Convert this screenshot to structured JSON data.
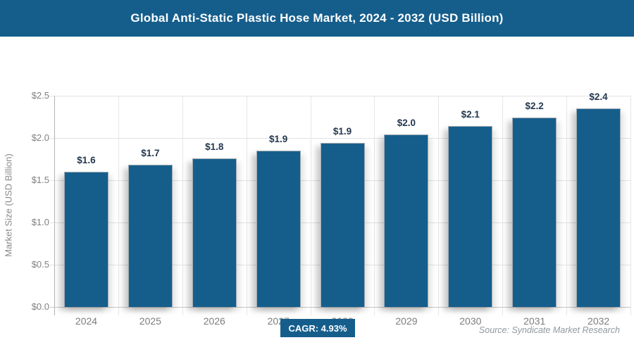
{
  "header": {
    "title": "Global Anti-Static Plastic Hose Market, 2024 - 2032 (USD Billion)"
  },
  "chart_data": {
    "type": "bar",
    "title": "Global Anti-Static Plastic Hose Market, 2024 - 2032 (USD Billion)",
    "categories": [
      "2024",
      "2025",
      "2026",
      "2027",
      "2028",
      "2029",
      "2030",
      "2031",
      "2032"
    ],
    "values": [
      1.6,
      1.68,
      1.76,
      1.85,
      1.94,
      2.04,
      2.14,
      2.24,
      2.35
    ],
    "value_labels": [
      "$1.6",
      "$1.7",
      "$1.8",
      "$1.9",
      "$1.9",
      "$2.0",
      "$2.1",
      "$2.2",
      "$2.4"
    ],
    "xlabel": "",
    "ylabel": "Market Size (USD Billion)",
    "ylim": [
      0,
      2.5
    ],
    "yticks": [
      "$0.0",
      "$0.5",
      "$1.0",
      "$1.5",
      "$2.0",
      "$2.5"
    ],
    "grid": true,
    "legend": "none",
    "bar_color": "#155E8C"
  },
  "footer": {
    "cagr_label": "CAGR: 4.93%",
    "source": "Source: Syndicate Market Research"
  },
  "colors": {
    "brand_blue": "#155E8C",
    "data_label_text": "#24384F",
    "axis_text": "#808080",
    "gridline": "#E3E3E3",
    "source_text": "#8F999E"
  }
}
